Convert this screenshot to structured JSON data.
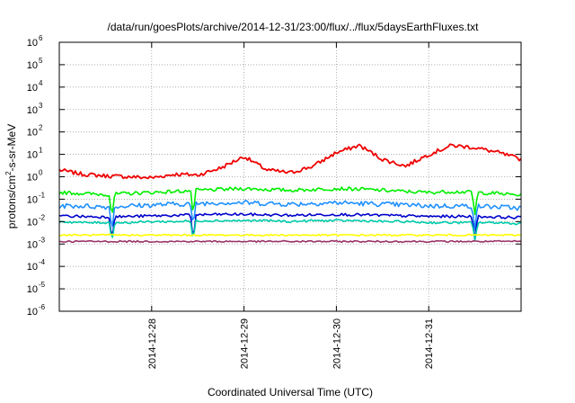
{
  "chart_data": {
    "type": "line",
    "title": "/data/run/goesPlots/archive/2014-12-31/23:00/flux/../flux/5daysEarthFluxes.txt",
    "xlabel": "Coordinated Universal Time (UTC)",
    "ylabel": "protons/cm²-s-sr-MeV",
    "ylabel_parts": {
      "before": "protons/cm",
      "sup": "2",
      "after": "-s-sr-MeV"
    },
    "yscale": "log",
    "ylim": [
      1e-06,
      1000000.0
    ],
    "xlim": [
      0,
      5
    ],
    "grid": true,
    "x_ticks": [
      {
        "pos": 1,
        "label": "2014-12-28"
      },
      {
        "pos": 2,
        "label": "2014-12-29"
      },
      {
        "pos": 3,
        "label": "2014-12-30"
      },
      {
        "pos": 4,
        "label": "2014-12-31"
      }
    ],
    "y_ticks": [
      {
        "exp": -6,
        "base": "10",
        "sup": "-6"
      },
      {
        "exp": -5,
        "base": "10",
        "sup": "-5"
      },
      {
        "exp": -4,
        "base": "10",
        "sup": "-4"
      },
      {
        "exp": -3,
        "base": "10",
        "sup": "-3"
      },
      {
        "exp": -2,
        "base": "10",
        "sup": "-2"
      },
      {
        "exp": -1,
        "base": "10",
        "sup": "-1"
      },
      {
        "exp": 0,
        "base": "10",
        "sup": "0"
      },
      {
        "exp": 1,
        "base": "10",
        "sup": "1"
      },
      {
        "exp": 2,
        "base": "10",
        "sup": "2"
      },
      {
        "exp": 3,
        "base": "10",
        "sup": "3"
      },
      {
        "exp": 4,
        "base": "10",
        "sup": "4"
      },
      {
        "exp": 5,
        "base": "10",
        "sup": "5"
      },
      {
        "exp": 6,
        "base": "10",
        "sup": "6"
      }
    ],
    "x": [
      0.0,
      0.25,
      0.5,
      0.75,
      1.0,
      1.25,
      1.5,
      1.75,
      2.0,
      2.25,
      2.5,
      2.75,
      3.0,
      3.25,
      3.5,
      3.75,
      4.0,
      4.25,
      4.5,
      4.75,
      5.0
    ],
    "series": [
      {
        "color": "#ee0000",
        "values": [
          2.0,
          1.3,
          1.1,
          1.0,
          0.9,
          1.3,
          1.2,
          2.5,
          8.0,
          2.0,
          1.5,
          3.0,
          12.0,
          25.0,
          6.0,
          3.0,
          10.0,
          25.0,
          20.0,
          12.0,
          6.0
        ]
      },
      {
        "color": "#00ee00",
        "values": [
          0.2,
          0.18,
          0.16,
          0.18,
          0.2,
          0.22,
          0.25,
          0.27,
          0.3,
          0.27,
          0.25,
          0.27,
          0.3,
          0.28,
          0.25,
          0.22,
          0.2,
          0.22,
          0.2,
          0.18,
          0.15
        ]
      },
      {
        "color": "#1e90ff",
        "values": [
          0.05,
          0.05,
          0.045,
          0.05,
          0.055,
          0.06,
          0.065,
          0.07,
          0.07,
          0.065,
          0.06,
          0.065,
          0.07,
          0.065,
          0.06,
          0.055,
          0.05,
          0.05,
          0.05,
          0.045,
          0.04
        ]
      },
      {
        "color": "#0000cc",
        "values": [
          0.018,
          0.017,
          0.016,
          0.017,
          0.018,
          0.019,
          0.02,
          0.021,
          0.021,
          0.02,
          0.019,
          0.02,
          0.021,
          0.02,
          0.019,
          0.018,
          0.017,
          0.017,
          0.017,
          0.016,
          0.015
        ]
      },
      {
        "color": "#00ccaa",
        "values": [
          0.01,
          0.009,
          0.009,
          0.009,
          0.01,
          0.01,
          0.011,
          0.011,
          0.011,
          0.011,
          0.01,
          0.011,
          0.011,
          0.011,
          0.01,
          0.01,
          0.009,
          0.009,
          0.009,
          0.009,
          0.008
        ]
      },
      {
        "color": "#ffff00",
        "values": [
          0.0025,
          0.0025,
          0.0025,
          0.0025,
          0.0025,
          0.0025,
          0.0025,
          0.0025,
          0.0025,
          0.0025,
          0.0025,
          0.0025,
          0.0025,
          0.0025,
          0.0025,
          0.0025,
          0.0025,
          0.0025,
          0.0025,
          0.0025,
          0.0025
        ]
      },
      {
        "color": "#993366",
        "values": [
          0.0013,
          0.0013,
          0.0013,
          0.0013,
          0.0013,
          0.0013,
          0.0013,
          0.0013,
          0.0013,
          0.0013,
          0.0013,
          0.0013,
          0.0013,
          0.0013,
          0.0013,
          0.0013,
          0.0013,
          0.0013,
          0.0013,
          0.0013,
          0.0013
        ]
      }
    ],
    "dips": [
      {
        "x": 0.57,
        "depth_decades": 1.0
      },
      {
        "x": 1.45,
        "depth_decades": 1.1
      },
      {
        "x": 4.5,
        "depth_decades": 1.0
      }
    ]
  }
}
